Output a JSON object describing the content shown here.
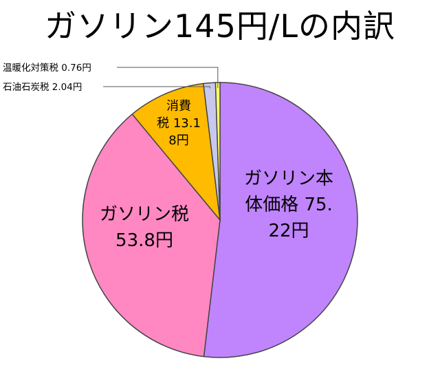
{
  "chart_data": {
    "type": "pie",
    "title": "ガソリン145円/Lの内訳",
    "slices": [
      {
        "name": "ガソリン本体価格",
        "value": 75.22,
        "label_lines": [
          "ガソリン本",
          "体価格 75.",
          "22円"
        ],
        "color": "#c084fc"
      },
      {
        "name": "ガソリン税",
        "value": 53.8,
        "label_lines": [
          "ガソリン税",
          "53.8円"
        ],
        "color": "#ff88c2"
      },
      {
        "name": "消費税",
        "value": 13.18,
        "label_lines": [
          "消費",
          "税 13.1",
          "8円"
        ],
        "color": "#ffbb00"
      },
      {
        "name": "石油石炭税",
        "value": 2.04,
        "label_lines": [
          "石油石炭税 2.04円"
        ],
        "color": "#c8c8ee"
      },
      {
        "name": "温暖化対策税",
        "value": 0.76,
        "label_lines": [
          "温暖化対策税 0.76円"
        ],
        "color": "#ffff66"
      }
    ]
  }
}
